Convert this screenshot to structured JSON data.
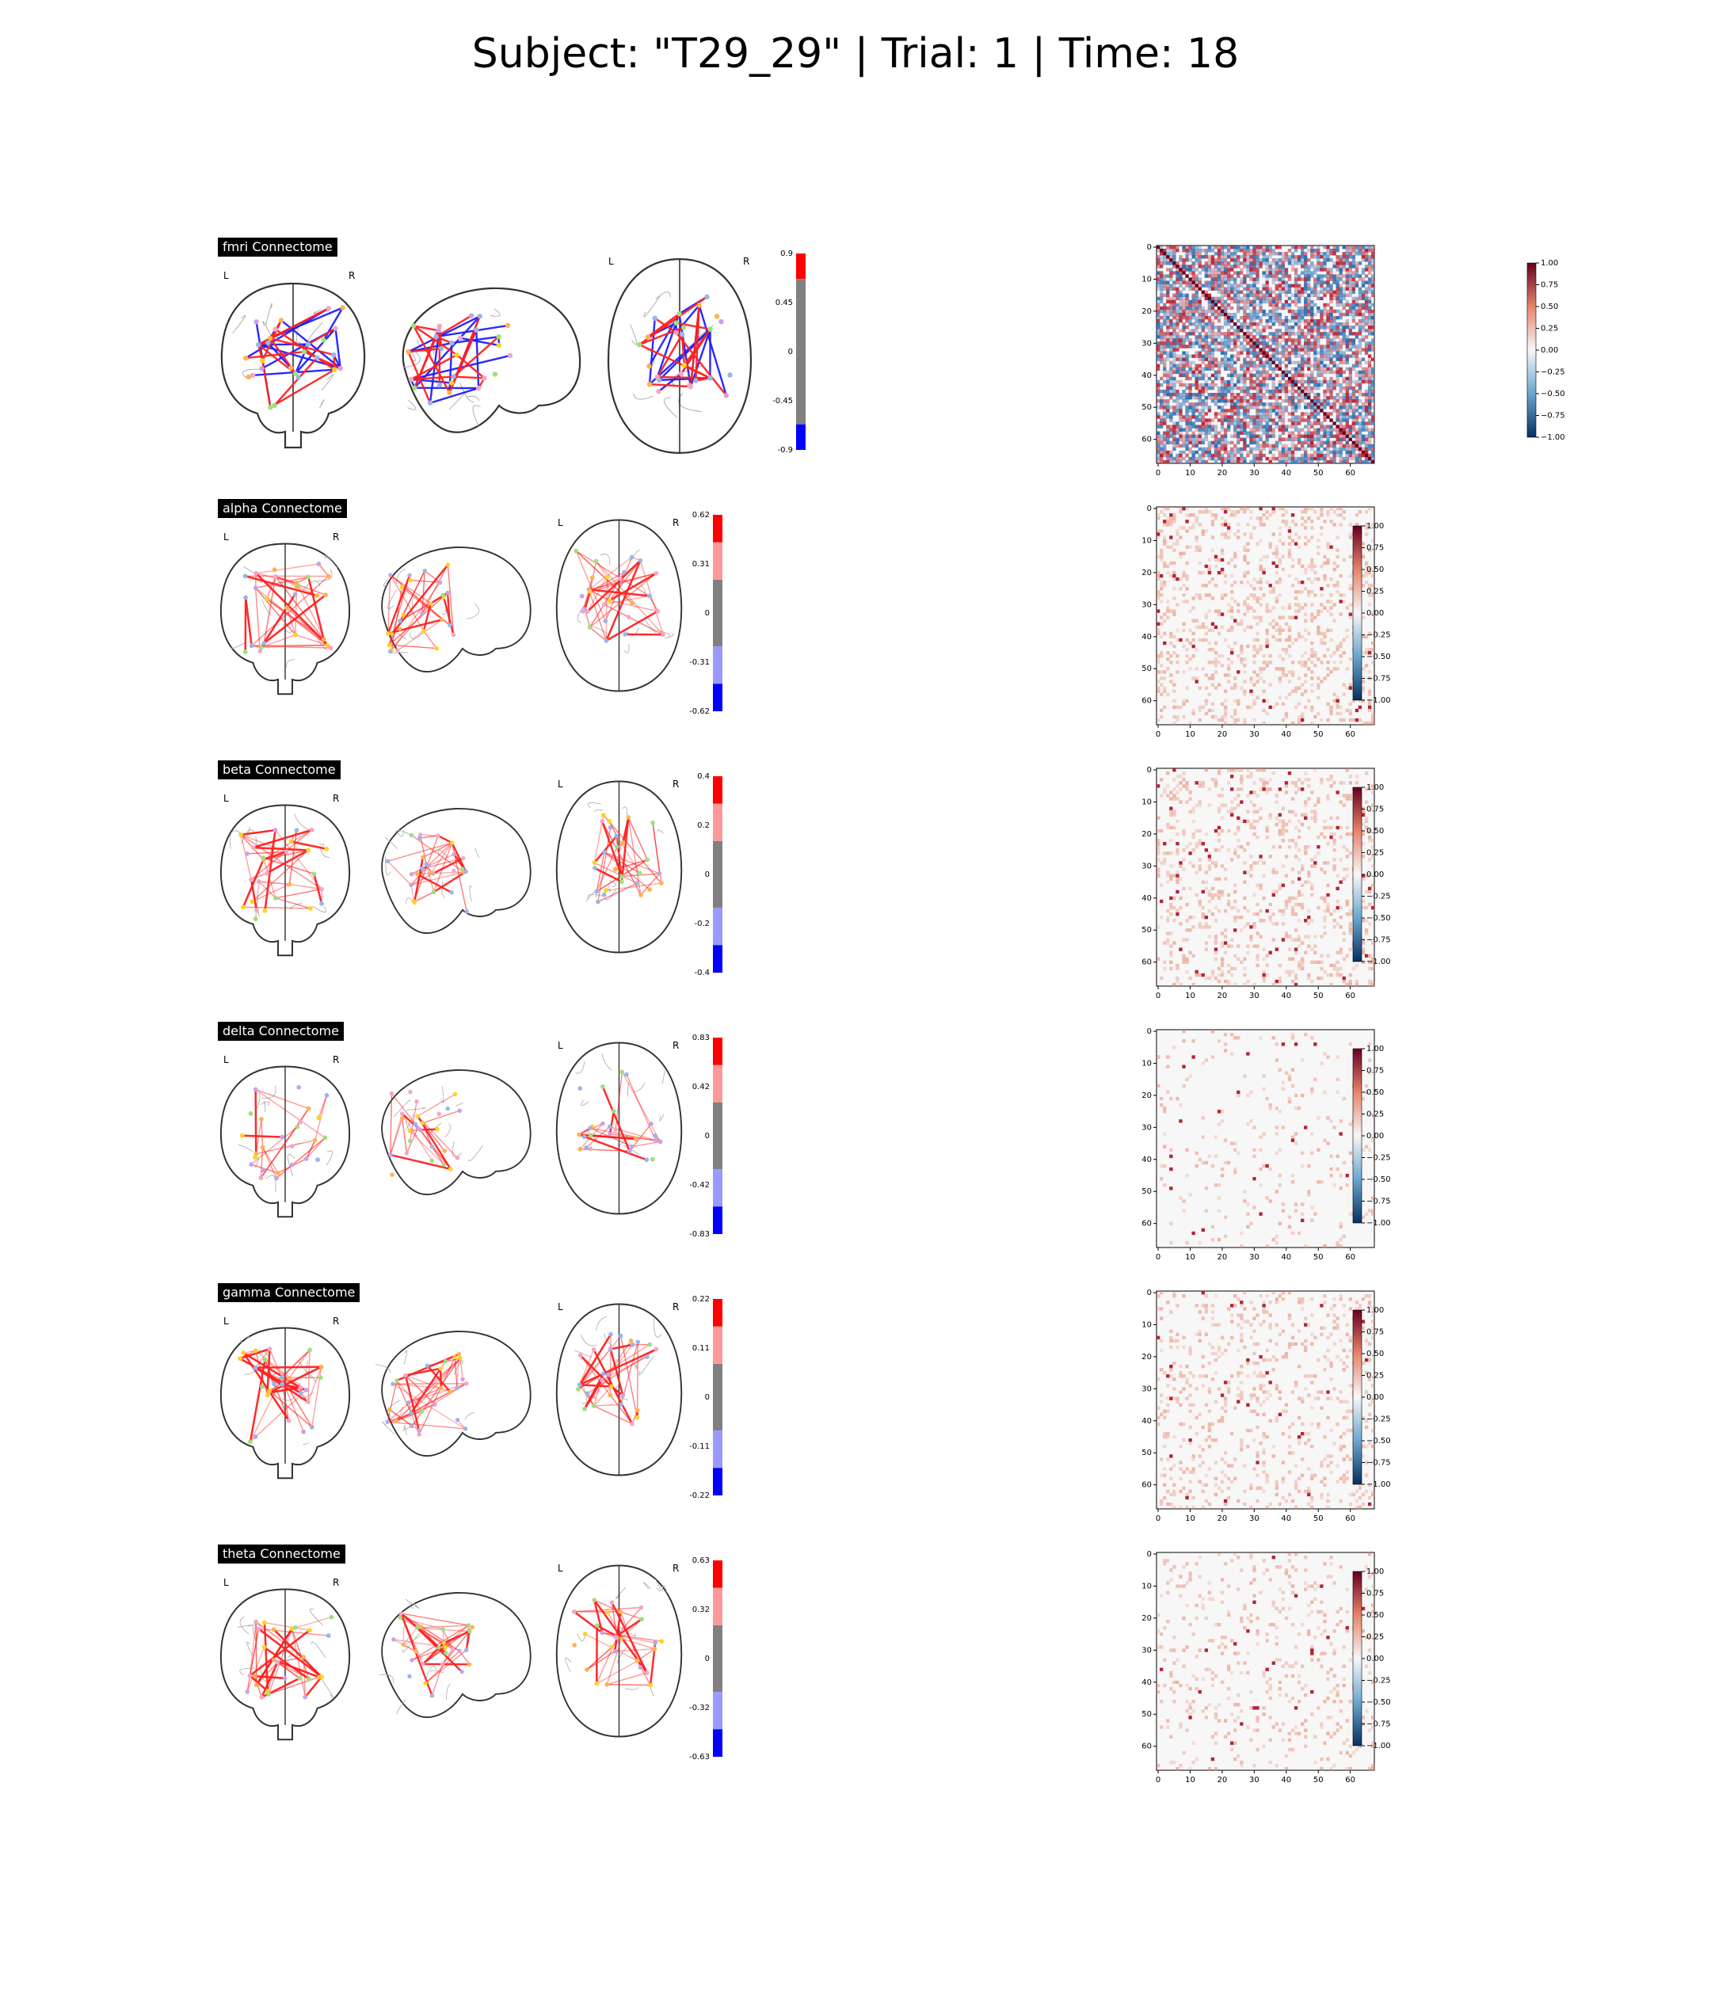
{
  "figure": {
    "title": "Subject: \"T29_29\" | Trial: 1 | Time: 18"
  },
  "colors": {
    "pos_edge": "#ff2020",
    "neg_edge": "#1f1fff",
    "outline": "#333333",
    "node_colors": [
      "#ffd21f",
      "#9ee07b",
      "#9bb5e8",
      "#f4a6c6",
      "#c9a3e6",
      "#ffb24d"
    ],
    "cbar_pos": "#ff0000",
    "cbar_mid": "#808080",
    "cbar_neg": "#0000ff"
  },
  "rows": [
    {
      "label": "fmri Connectome",
      "kind": "fmri",
      "cbar_ticks": [
        "0.9",
        "0.45",
        "0",
        "-0.45",
        "-0.9"
      ],
      "edges": {
        "pos": 55,
        "neg": 55,
        "seed": 11
      },
      "matrix": {
        "xticks": [
          "0",
          "10",
          "20",
          "30",
          "40",
          "50",
          "60"
        ],
        "yticks": [
          "0",
          "10",
          "20",
          "30",
          "40",
          "50",
          "60"
        ],
        "cbar_ticks": [
          "1.00",
          "0.75",
          "0.50",
          "0.25",
          "0.00",
          "−0.25",
          "−0.50",
          "−0.75",
          "−1.00"
        ],
        "density": 0.75,
        "diag": true,
        "seed": 101
      }
    },
    {
      "label": "alpha Connectome",
      "kind": "eeg",
      "cbar_ticks": [
        "0.62",
        "0.31",
        "0",
        "-0.31",
        "-0.62"
      ],
      "edges": {
        "pos": 120,
        "neg": 0,
        "seed": 22
      },
      "matrix": {
        "xticks": [
          "0",
          "10",
          "20",
          "30",
          "40",
          "50",
          "60"
        ],
        "yticks": [
          "0",
          "10",
          "20",
          "30",
          "40",
          "50",
          "60"
        ],
        "cbar_ticks": [
          "1.00",
          "0.75",
          "0.50",
          "0.25",
          "0.00",
          "−0.25",
          "−0.50",
          "−0.75",
          "−1.00"
        ],
        "density": 0.22,
        "diag": false,
        "seed": 202
      }
    },
    {
      "label": "beta Connectome",
      "kind": "eeg",
      "cbar_ticks": [
        "0.4",
        "0.2",
        "0",
        "-0.2",
        "-0.4"
      ],
      "edges": {
        "pos": 110,
        "neg": 0,
        "seed": 33
      },
      "matrix": {
        "xticks": [
          "0",
          "10",
          "20",
          "30",
          "40",
          "50",
          "60"
        ],
        "yticks": [
          "0",
          "10",
          "20",
          "30",
          "40",
          "50",
          "60"
        ],
        "cbar_ticks": [
          "1.00",
          "0.75",
          "0.50",
          "0.25",
          "0.00",
          "−0.25",
          "−0.50",
          "−0.75",
          "−1.00"
        ],
        "density": 0.18,
        "diag": false,
        "seed": 303
      }
    },
    {
      "label": "delta Connectome",
      "kind": "eeg",
      "cbar_ticks": [
        "0.83",
        "0.42",
        "0",
        "-0.42",
        "-0.83"
      ],
      "edges": {
        "pos": 70,
        "neg": 0,
        "seed": 44
      },
      "matrix": {
        "xticks": [
          "0",
          "10",
          "20",
          "30",
          "40",
          "50",
          "60"
        ],
        "yticks": [
          "0",
          "10",
          "20",
          "30",
          "40",
          "50",
          "60"
        ],
        "cbar_ticks": [
          "1.00",
          "0.75",
          "0.50",
          "0.25",
          "0.00",
          "−0.25",
          "−0.50",
          "−0.75",
          "−1.00"
        ],
        "density": 0.06,
        "diag": false,
        "seed": 404
      }
    },
    {
      "label": "gamma Connectome",
      "kind": "eeg",
      "cbar_ticks": [
        "0.22",
        "0.11",
        "0",
        "-0.11",
        "-0.22"
      ],
      "edges": {
        "pos": 130,
        "neg": 0,
        "seed": 55
      },
      "matrix": {
        "xticks": [
          "0",
          "10",
          "20",
          "30",
          "40",
          "50",
          "60"
        ],
        "yticks": [
          "0",
          "10",
          "20",
          "30",
          "40",
          "50",
          "60"
        ],
        "cbar_ticks": [
          "1.00",
          "0.75",
          "0.50",
          "0.25",
          "0.00",
          "−0.25",
          "−0.50",
          "−0.75",
          "−1.00"
        ],
        "density": 0.15,
        "diag": false,
        "seed": 505
      }
    },
    {
      "label": "theta Connectome",
      "kind": "eeg",
      "cbar_ticks": [
        "0.63",
        "0.32",
        "0",
        "-0.32",
        "-0.63"
      ],
      "edges": {
        "pos": 115,
        "neg": 0,
        "seed": 66
      },
      "matrix": {
        "xticks": [
          "0",
          "10",
          "20",
          "30",
          "40",
          "50",
          "60"
        ],
        "yticks": [
          "0",
          "10",
          "20",
          "30",
          "40",
          "50",
          "60"
        ],
        "cbar_ticks": [
          "1.00",
          "0.75",
          "0.50",
          "0.25",
          "0.00",
          "−0.25",
          "−0.50",
          "−0.75",
          "−1.00"
        ],
        "density": 0.09,
        "diag": false,
        "seed": 606
      }
    }
  ],
  "views": {
    "left_label": "L",
    "right_label": "R"
  }
}
